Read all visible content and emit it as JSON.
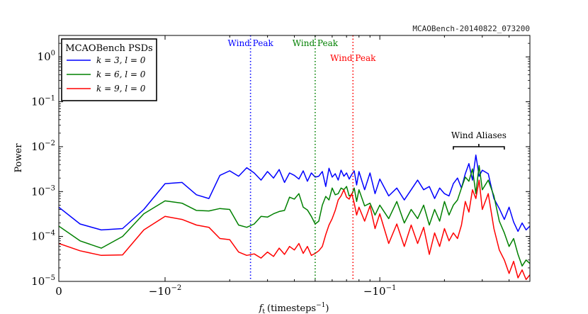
{
  "stamp": "MCAOBench-20140822_073200",
  "chart_data": {
    "type": "line",
    "title": "",
    "xlabel": "f_t (timesteps^-1)",
    "xlabel_main": "f",
    "xlabel_sub": "t",
    "xlabel_unit": "(timesteps",
    "xlabel_sup": "−1",
    "xlabel_close": ")",
    "ylabel": "Power",
    "xscale": "symlog",
    "linthresh": 0.01,
    "xlim": [
      0,
      0.5
    ],
    "yscale": "log",
    "ylim": [
      1e-05,
      3
    ],
    "xticks": [
      {
        "value": 0,
        "label": "0"
      },
      {
        "value": 0.01,
        "label": "−10",
        "sup": "−2"
      },
      {
        "value": 0.1,
        "label": "−10",
        "sup": "−1"
      }
    ],
    "yticks": [
      {
        "value": 1e-05,
        "label": "10",
        "sup": "−5"
      },
      {
        "value": 0.0001,
        "label": "10",
        "sup": "−4"
      },
      {
        "value": 0.001,
        "label": "10",
        "sup": "−3"
      },
      {
        "value": 0.01,
        "label": "10",
        "sup": "−2"
      },
      {
        "value": 0.1,
        "label": "10",
        "sup": "−1"
      },
      {
        "value": 1,
        "label": "10",
        "sup": "0"
      }
    ],
    "legend": {
      "title": "MCAOBench PSDs",
      "position": "top-left",
      "entries": [
        "k = 3, l = 0",
        "k = 6, l = 0",
        "k = 9, l = 0"
      ]
    },
    "series": [
      {
        "name": "k = 3, l = 0",
        "color": "#0000ff",
        "x": [
          0,
          0.002,
          0.004,
          0.006,
          0.008,
          0.01,
          0.012,
          0.014,
          0.016,
          0.018,
          0.02,
          0.022,
          0.024,
          0.026,
          0.028,
          0.03,
          0.032,
          0.034,
          0.036,
          0.038,
          0.04,
          0.042,
          0.044,
          0.046,
          0.048,
          0.05,
          0.052,
          0.054,
          0.056,
          0.058,
          0.06,
          0.062,
          0.064,
          0.066,
          0.068,
          0.07,
          0.072,
          0.074,
          0.076,
          0.078,
          0.08,
          0.085,
          0.09,
          0.095,
          0.1,
          0.11,
          0.12,
          0.13,
          0.14,
          0.15,
          0.16,
          0.17,
          0.18,
          0.19,
          0.2,
          0.21,
          0.22,
          0.23,
          0.24,
          0.25,
          0.26,
          0.27,
          0.28,
          0.29,
          0.3,
          0.32,
          0.34,
          0.36,
          0.38,
          0.4,
          0.42,
          0.44,
          0.46,
          0.48,
          0.5
        ],
        "values": [
          0.00045,
          0.00019,
          0.00014,
          0.00015,
          0.0004,
          0.0015,
          0.0016,
          0.00085,
          0.0007,
          0.0023,
          0.0029,
          0.0022,
          0.0034,
          0.0026,
          0.0018,
          0.0028,
          0.002,
          0.0031,
          0.0016,
          0.0026,
          0.0023,
          0.0019,
          0.0029,
          0.0017,
          0.0026,
          0.0021,
          0.0022,
          0.0028,
          0.0013,
          0.0033,
          0.0021,
          0.0025,
          0.0018,
          0.003,
          0.0022,
          0.0026,
          0.0019,
          0.0024,
          0.0029,
          0.0014,
          0.0028,
          0.0011,
          0.0026,
          0.0009,
          0.0019,
          0.0008,
          0.0012,
          0.00065,
          0.0011,
          0.0018,
          0.0011,
          0.0013,
          0.0007,
          0.0012,
          0.0009,
          0.0008,
          0.0015,
          0.002,
          0.0012,
          0.0025,
          0.0042,
          0.0018,
          0.0065,
          0.0022,
          0.003,
          0.0025,
          0.0007,
          0.00042,
          0.00024,
          0.00045,
          0.00021,
          0.00013,
          0.0002,
          0.00014,
          0.00017
        ]
      },
      {
        "name": "k = 6, l = 0",
        "color": "#008000",
        "x": [
          0,
          0.002,
          0.004,
          0.006,
          0.008,
          0.01,
          0.012,
          0.014,
          0.016,
          0.018,
          0.02,
          0.022,
          0.024,
          0.026,
          0.028,
          0.03,
          0.032,
          0.034,
          0.036,
          0.038,
          0.04,
          0.042,
          0.044,
          0.046,
          0.048,
          0.05,
          0.052,
          0.054,
          0.056,
          0.058,
          0.06,
          0.062,
          0.064,
          0.066,
          0.068,
          0.07,
          0.072,
          0.074,
          0.076,
          0.078,
          0.08,
          0.085,
          0.09,
          0.095,
          0.1,
          0.11,
          0.12,
          0.13,
          0.14,
          0.15,
          0.16,
          0.17,
          0.18,
          0.19,
          0.2,
          0.21,
          0.22,
          0.23,
          0.24,
          0.25,
          0.26,
          0.27,
          0.28,
          0.29,
          0.3,
          0.32,
          0.34,
          0.36,
          0.38,
          0.4,
          0.42,
          0.44,
          0.46,
          0.48,
          0.5
        ],
        "values": [
          0.00017,
          8e-05,
          5.5e-05,
          0.0001,
          0.00032,
          0.00062,
          0.00055,
          0.00038,
          0.00037,
          0.00042,
          0.0004,
          0.00018,
          0.00016,
          0.00019,
          0.00028,
          0.00027,
          0.00032,
          0.00036,
          0.00038,
          0.00075,
          0.00068,
          0.0009,
          0.00045,
          0.00039,
          0.00028,
          0.00019,
          0.00022,
          0.0005,
          0.00078,
          0.00065,
          0.0012,
          0.00085,
          0.0009,
          0.0012,
          0.0011,
          0.0013,
          0.0008,
          0.00085,
          0.0012,
          0.0006,
          0.0011,
          0.00048,
          0.00055,
          0.0003,
          0.0005,
          0.00025,
          0.0006,
          0.0002,
          0.0004,
          0.00025,
          0.0005,
          0.00018,
          0.0004,
          0.00022,
          0.0006,
          0.0003,
          0.0005,
          0.00065,
          0.0012,
          0.0021,
          0.0017,
          0.0032,
          0.0009,
          0.0038,
          0.0011,
          0.0018,
          0.0008,
          0.00022,
          0.00012,
          6e-05,
          9e-05,
          4e-05,
          2.2e-05,
          3e-05,
          2.5e-05
        ]
      },
      {
        "name": "k = 9, l = 0",
        "color": "#ff0000",
        "x": [
          0,
          0.002,
          0.004,
          0.006,
          0.008,
          0.01,
          0.012,
          0.014,
          0.016,
          0.018,
          0.02,
          0.022,
          0.024,
          0.026,
          0.028,
          0.03,
          0.032,
          0.034,
          0.036,
          0.038,
          0.04,
          0.042,
          0.044,
          0.046,
          0.048,
          0.05,
          0.052,
          0.054,
          0.056,
          0.058,
          0.06,
          0.062,
          0.064,
          0.066,
          0.068,
          0.07,
          0.072,
          0.074,
          0.076,
          0.078,
          0.08,
          0.085,
          0.09,
          0.095,
          0.1,
          0.11,
          0.12,
          0.13,
          0.14,
          0.15,
          0.16,
          0.17,
          0.18,
          0.19,
          0.2,
          0.21,
          0.22,
          0.23,
          0.24,
          0.25,
          0.26,
          0.27,
          0.28,
          0.29,
          0.3,
          0.32,
          0.34,
          0.36,
          0.38,
          0.4,
          0.42,
          0.44,
          0.46,
          0.48,
          0.5
        ],
        "values": [
          7e-05,
          4.8e-05,
          3.8e-05,
          3.9e-05,
          0.00014,
          0.00028,
          0.00024,
          0.00018,
          0.00016,
          9e-05,
          8.5e-05,
          4.5e-05,
          3.8e-05,
          4.1e-05,
          3.3e-05,
          4.5e-05,
          3.6e-05,
          5.5e-05,
          4e-05,
          6e-05,
          5e-05,
          7e-05,
          4.2e-05,
          6e-05,
          3.8e-05,
          4.2e-05,
          4.8e-05,
          6e-05,
          0.00011,
          0.00018,
          0.00025,
          0.00038,
          0.00065,
          0.0008,
          0.0011,
          0.00075,
          0.00068,
          0.0009,
          0.00055,
          0.0003,
          0.00045,
          0.00022,
          0.00048,
          0.00015,
          0.00032,
          7e-05,
          0.00019,
          6e-05,
          0.00018,
          7e-05,
          0.00016,
          4e-05,
          0.00012,
          6e-05,
          0.00015,
          8e-05,
          0.00012,
          9e-05,
          0.00018,
          0.0006,
          0.00035,
          0.0011,
          0.0007,
          0.0018,
          0.0004,
          0.0009,
          0.00015,
          5e-05,
          3e-05,
          1.5e-05,
          2.8e-05,
          1.2e-05,
          1.8e-05,
          1.1e-05,
          1.4e-05
        ]
      }
    ],
    "annotations": [
      {
        "type": "vline",
        "x": 0.025,
        "color": "#0000ff",
        "label": "Wind Peak"
      },
      {
        "type": "vline",
        "x": 0.05,
        "color": "#008000",
        "label": "Wind Peak"
      },
      {
        "type": "vline",
        "x": 0.075,
        "color": "#ff0000",
        "label": "Wind Peak"
      },
      {
        "type": "bracket",
        "x_range": [
          0.22,
          0.38
        ],
        "y": 0.01,
        "label": "Wind Aliases"
      }
    ]
  }
}
